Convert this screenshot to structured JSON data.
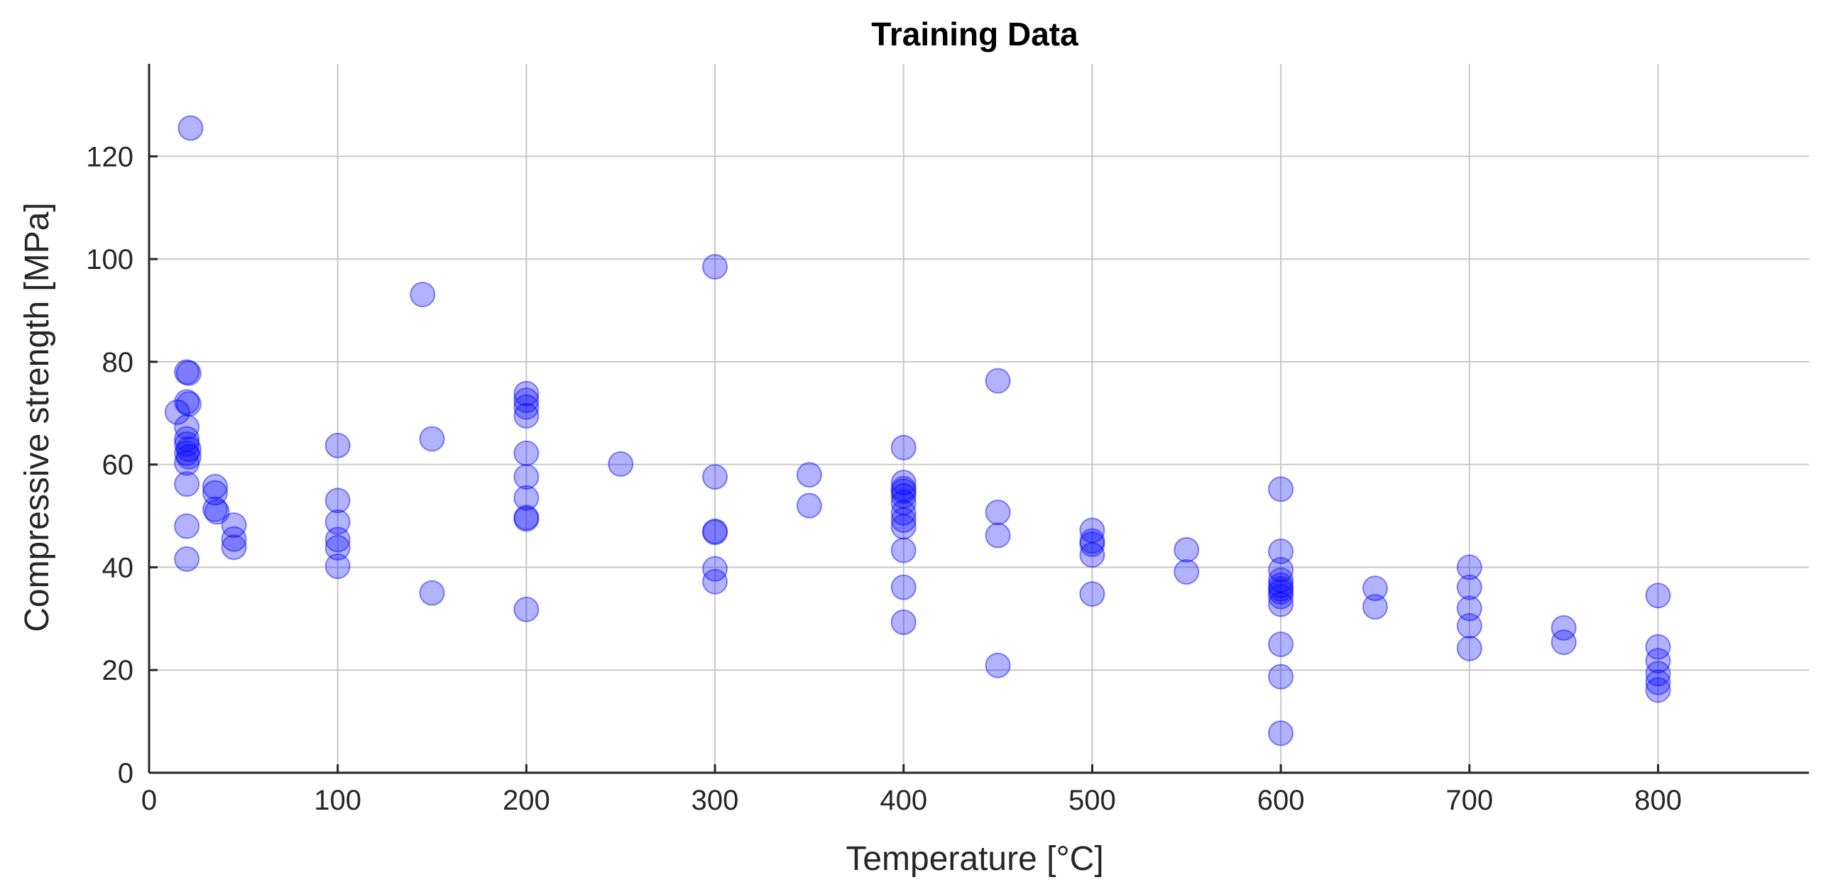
{
  "chart_data": {
    "type": "scatter",
    "title": "Training Data",
    "xlabel": "Temperature [°C]",
    "ylabel": "Compressive strength [MPa]",
    "xlim": [
      0,
      880
    ],
    "ylim": [
      0,
      138
    ],
    "xticks": [
      0,
      100,
      200,
      300,
      400,
      500,
      600,
      700,
      800
    ],
    "yticks": [
      0,
      20,
      40,
      60,
      80,
      100,
      120
    ],
    "grid": true,
    "marker_color": "#0000ff",
    "series": [
      {
        "points": [
          [
            22,
            125.5
          ],
          [
            15,
            70.2
          ],
          [
            20,
            78
          ],
          [
            21,
            77.8
          ],
          [
            20,
            72.2
          ],
          [
            21,
            71.8
          ],
          [
            20,
            67.3
          ],
          [
            20,
            65
          ],
          [
            20,
            64
          ],
          [
            21,
            63
          ],
          [
            20,
            62.2
          ],
          [
            21,
            61.5
          ],
          [
            20,
            60.3
          ],
          [
            20,
            56.2
          ],
          [
            20,
            48
          ],
          [
            20,
            41.6
          ],
          [
            35,
            55.7
          ],
          [
            35,
            54.5
          ],
          [
            35,
            51.3
          ],
          [
            36,
            50.8
          ],
          [
            45,
            48.2
          ],
          [
            45,
            45.5
          ],
          [
            45,
            43.9
          ],
          [
            100,
            63.7
          ],
          [
            100,
            53
          ],
          [
            100,
            48.8
          ],
          [
            100,
            45.4
          ],
          [
            100,
            43.8
          ],
          [
            100,
            40.2
          ],
          [
            145,
            93.1
          ],
          [
            150,
            65
          ],
          [
            150,
            35
          ],
          [
            200,
            73.8
          ],
          [
            200,
            72.5
          ],
          [
            200,
            71.2
          ],
          [
            200,
            69.5
          ],
          [
            200,
            62.2
          ],
          [
            200,
            57.6
          ],
          [
            200,
            53.5
          ],
          [
            200,
            49.7
          ],
          [
            200,
            49.4
          ],
          [
            200,
            31.8
          ],
          [
            250,
            60.1
          ],
          [
            300,
            98.5
          ],
          [
            300,
            57.6
          ],
          [
            300,
            47
          ],
          [
            300,
            46.8
          ],
          [
            300,
            39.7
          ],
          [
            300,
            37.2
          ],
          [
            350,
            58
          ],
          [
            350,
            52
          ],
          [
            400,
            63.3
          ],
          [
            400,
            56.5
          ],
          [
            400,
            55.3
          ],
          [
            400,
            54.8
          ],
          [
            400,
            53.9
          ],
          [
            400,
            52.6
          ],
          [
            400,
            50.6
          ],
          [
            400,
            49.2
          ],
          [
            400,
            47.9
          ],
          [
            400,
            43.3
          ],
          [
            400,
            36.1
          ],
          [
            400,
            29.3
          ],
          [
            450,
            76.3
          ],
          [
            450,
            50.7
          ],
          [
            450,
            46.2
          ],
          [
            450,
            20.9
          ],
          [
            500,
            47.2
          ],
          [
            500,
            45.1
          ],
          [
            500,
            44.5
          ],
          [
            500,
            42.4
          ],
          [
            500,
            34.8
          ],
          [
            550,
            43.4
          ],
          [
            550,
            39.1
          ],
          [
            600,
            55.2
          ],
          [
            600,
            43.1
          ],
          [
            600,
            39.5
          ],
          [
            600,
            37.5
          ],
          [
            600,
            36.5
          ],
          [
            600,
            35.8
          ],
          [
            600,
            35.2
          ],
          [
            600,
            34.3
          ],
          [
            600,
            32.8
          ],
          [
            600,
            25
          ],
          [
            600,
            18.7
          ],
          [
            600,
            7.7
          ],
          [
            650,
            35.9
          ],
          [
            650,
            32.3
          ],
          [
            700,
            40
          ],
          [
            700,
            36.1
          ],
          [
            700,
            32
          ],
          [
            700,
            28.6
          ],
          [
            700,
            24.2
          ],
          [
            750,
            28.2
          ],
          [
            750,
            25.4
          ],
          [
            800,
            34.5
          ],
          [
            800,
            24.5
          ],
          [
            800,
            21.8
          ],
          [
            800,
            19.3
          ],
          [
            800,
            17.6
          ],
          [
            800,
            16.1
          ]
        ]
      }
    ]
  }
}
